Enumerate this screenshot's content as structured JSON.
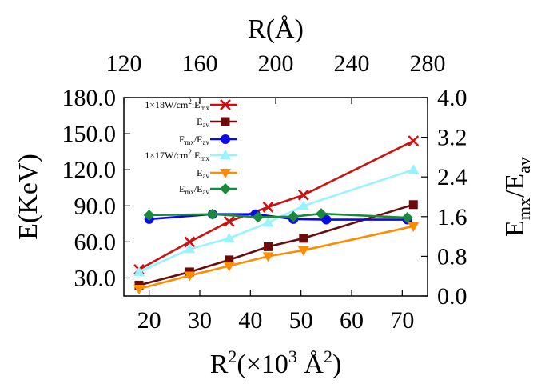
{
  "chart_data": {
    "type": "line",
    "xlabel": {
      "base": "R",
      "sup": "2",
      "unit_open": "(×10",
      "unit_sup": "3",
      "unit_mid": " Å",
      "unit_sup2": "2",
      "unit_close": ")"
    },
    "x2label": "R(Å)",
    "ylabel": "E(KeV)",
    "y2label": {
      "base": "E",
      "sub1": "mx",
      "slash": "/E",
      "sub2": "av"
    },
    "xlim": [
      15,
      75
    ],
    "ylim": [
      15,
      180
    ],
    "y2lim": [
      0,
      4
    ],
    "x2lim": [
      120,
      280
    ],
    "xticks": [
      "20",
      "30",
      "40",
      "50",
      "60",
      "70"
    ],
    "yticks": [
      "30.0",
      "60.0",
      "90.0",
      "120.0",
      "150.0",
      "180.0"
    ],
    "y2ticks": [
      "0.0",
      "0.8",
      "1.6",
      "2.4",
      "3.2",
      "4.0"
    ],
    "x2ticks": [
      "120",
      "160",
      "200",
      "240",
      "280"
    ],
    "legend": [
      {
        "text": "1×18W/cm",
        "sup": "2",
        "rest": ":E",
        "sub": "mx"
      },
      {
        "text": "E",
        "sub": "av"
      },
      {
        "text": "E",
        "sub": "mx",
        "rest": "/E",
        "sub2": "av"
      },
      {
        "text": "1×17W/cm",
        "sup": "2",
        "rest": ":E",
        "sub": "mx"
      },
      {
        "text": "E",
        "sub": "av"
      },
      {
        "text": "E",
        "sub": "mx",
        "rest": "/E",
        "sub2": "av"
      }
    ],
    "series": [
      {
        "key": "s1",
        "axis": "left",
        "color": "#cc1111",
        "marker": "x",
        "x": [
          18,
          28,
          35.8,
          43.5,
          50.5,
          72.2
        ],
        "y": [
          37,
          60,
          77,
          89,
          99,
          144
        ]
      },
      {
        "key": "s2",
        "axis": "left",
        "color": "#6b0b0b",
        "marker": "square",
        "x": [
          18,
          28,
          35.8,
          43.5,
          50.5,
          72.2
        ],
        "y": [
          24,
          35,
          45,
          56,
          63,
          91
        ]
      },
      {
        "key": "s3",
        "axis": "right",
        "color": "#0a0ae6",
        "marker": "circle",
        "x": [
          20,
          32.5,
          41,
          48.5,
          55,
          71
        ],
        "y": [
          1.55,
          1.65,
          1.65,
          1.55,
          1.54,
          1.54
        ]
      },
      {
        "key": "s4",
        "axis": "left",
        "color": "#99f2ff",
        "marker": "triangle-up",
        "x": [
          18,
          28,
          35.8,
          43.5,
          50.5,
          72.2
        ],
        "y": [
          35,
          54,
          63,
          76,
          90,
          120
        ]
      },
      {
        "key": "s5",
        "axis": "left",
        "color": "#ff8c00",
        "marker": "triangle-down",
        "x": [
          18,
          28,
          35.8,
          43.5,
          50.5,
          72.2
        ],
        "y": [
          21,
          32,
          40,
          48,
          53,
          73
        ]
      },
      {
        "key": "s6",
        "axis": "right",
        "color": "#1a8a3a",
        "marker": "diamond",
        "x": [
          20,
          32.5,
          41.5,
          48.5,
          54,
          71
        ],
        "y": [
          1.63,
          1.65,
          1.59,
          1.6,
          1.66,
          1.58
        ]
      }
    ]
  }
}
